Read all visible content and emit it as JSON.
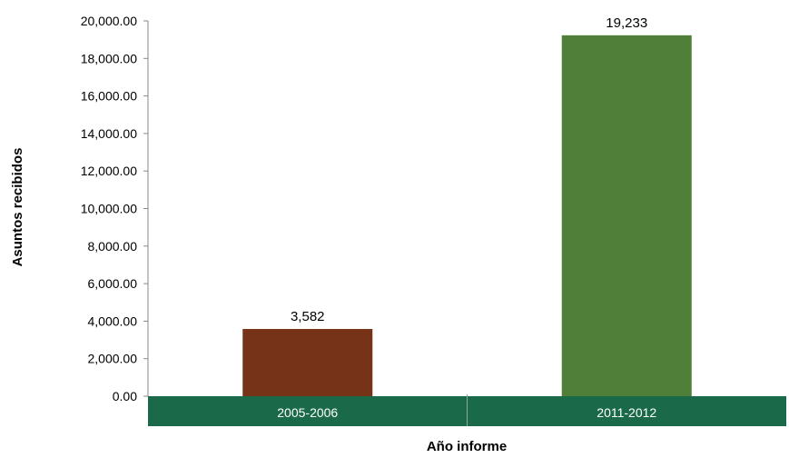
{
  "chart_data": {
    "type": "bar",
    "categories": [
      "2005-2006",
      "2011-2012"
    ],
    "values": [
      3582,
      19233
    ],
    "value_labels": [
      "3,582",
      "19,233"
    ],
    "bar_colors": [
      "#763318",
      "#4f7f39"
    ],
    "category_band_color": "#1a6a4a",
    "ylim": [
      0,
      20000
    ],
    "yticks": [
      0,
      2000,
      4000,
      6000,
      8000,
      10000,
      12000,
      14000,
      16000,
      18000,
      20000
    ],
    "ytick_labels": [
      "0.00",
      "2,000.00",
      "4,000.00",
      "6,000.00",
      "8,000.00",
      "10,000.00",
      "12,000.00",
      "14,000.00",
      "16,000.00",
      "18,000.00",
      "20,000.00"
    ],
    "xlabel": "Año informe",
    "ylabel": "Asuntos recibidos",
    "title": "",
    "grid": false,
    "legend": "none"
  }
}
